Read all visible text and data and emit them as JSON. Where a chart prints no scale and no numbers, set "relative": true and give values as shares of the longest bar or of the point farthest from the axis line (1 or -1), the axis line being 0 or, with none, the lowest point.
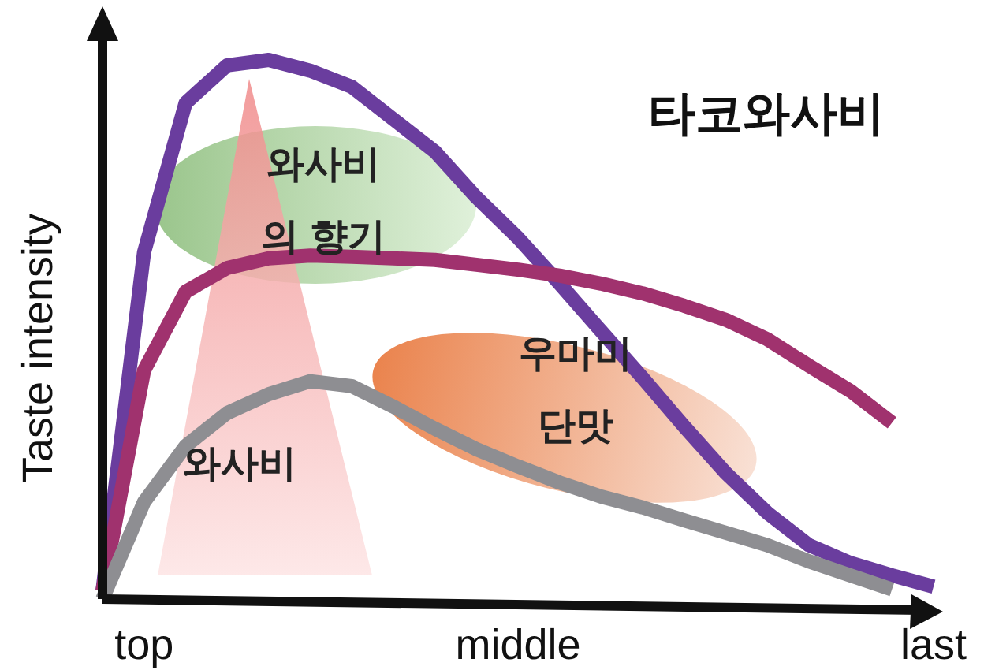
{
  "chart_data": {
    "type": "line",
    "relative": true,
    "title": "타코와사비",
    "ylabel": "Taste intensity",
    "categories": [
      null,
      "top",
      null,
      null,
      null,
      null,
      null,
      null,
      null,
      null,
      "middle",
      null,
      null,
      null,
      null,
      null,
      null,
      null,
      null,
      null,
      "last"
    ],
    "annotations": [
      "와사비\n의 향기",
      "우마미\n단맛",
      "와사비"
    ],
    "marker": "none",
    "line_style": "solid",
    "series": [
      {
        "color": "#6a3d9e",
        "values": [
          0.015,
          0.643,
          0.92,
          0.99,
          1.0,
          0.98,
          0.95,
          0.89,
          0.83,
          0.745,
          0.67,
          0.585,
          0.497,
          0.41,
          0.32,
          0.234,
          0.16,
          0.1,
          0.067,
          0.044,
          0.023
        ]
      },
      {
        "color": "#a0326e",
        "values": [
          0.015,
          0.424,
          0.57,
          0.614,
          0.632,
          0.637,
          0.635,
          0.632,
          0.629,
          0.62,
          0.611,
          0.6,
          0.585,
          0.567,
          0.544,
          0.518,
          0.482,
          0.433,
          0.386,
          0.327,
          null
        ]
      },
      {
        "color": "#8e8e92",
        "values": [
          0,
          0.18,
          0.284,
          0.345,
          0.38,
          0.404,
          0.395,
          0.357,
          0.316,
          0.278,
          0.246,
          0.216,
          0.19,
          0.17,
          0.146,
          0.123,
          0.1,
          0.07,
          0.044,
          0.018,
          null
        ]
      }
    ]
  }
}
